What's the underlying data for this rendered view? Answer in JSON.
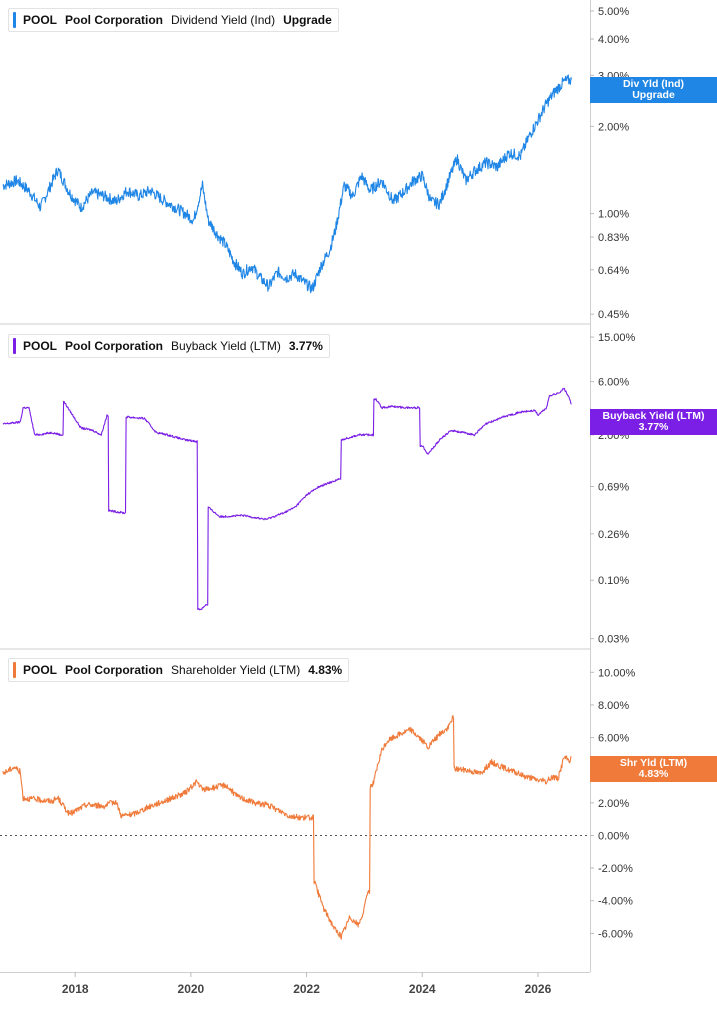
{
  "x_axis": {
    "ticks": [
      "2018",
      "2020",
      "2022",
      "2024",
      "2026"
    ],
    "tick_years": [
      2018,
      2020,
      2022,
      2024,
      2026
    ]
  },
  "colors": {
    "dividend": "#1f86e6",
    "buyback": "#7b1fe6",
    "shareholder": "#f07a3a",
    "grid": "#e6e6e6",
    "axis_text": "#333333"
  },
  "panels": [
    {
      "key": "dividend",
      "symbol": "POOL",
      "company": "Pool Corporation",
      "metric": "Dividend Yield (Ind)",
      "value": "Upgrade",
      "badge_lines": [
        "Div Yld (Ind)",
        "Upgrade"
      ]
    },
    {
      "key": "buyback",
      "symbol": "POOL",
      "company": "Pool Corporation",
      "metric": "Buyback Yield (LTM)",
      "value": "3.77%",
      "badge_lines": [
        "Buyback Yield (LTM)",
        "3.77%"
      ]
    },
    {
      "key": "shareholder",
      "symbol": "POOL",
      "company": "Pool Corporation",
      "metric": "Shareholder Yield (LTM)",
      "value": "4.83%",
      "badge_lines": [
        "Shr Yld (LTM)",
        "4.83%"
      ]
    }
  ],
  "chart_data": [
    {
      "type": "line",
      "title": "POOL Pool Corporation Dividend Yield (Ind)",
      "y_scale": "log",
      "ylim": [
        0.44,
        5.2
      ],
      "y_ticks": [
        5.0,
        4.0,
        3.0,
        2.0,
        1.0,
        0.83,
        0.64,
        0.45
      ],
      "y_tick_labels": [
        "5.00%",
        "4.00%",
        "3.00%",
        "2.00%",
        "1.00%",
        "0.83%",
        "0.64%",
        "0.45%"
      ],
      "xlim": [
        2016.7,
        2026.9
      ],
      "series": [
        {
          "color": "#1f86e6",
          "x": [
            2016.75,
            2017.0,
            2017.2,
            2017.4,
            2017.55,
            2017.7,
            2017.9,
            2018.1,
            2018.3,
            2018.5,
            2018.7,
            2018.9,
            2019.1,
            2019.3,
            2019.5,
            2019.7,
            2019.9,
            2020.05,
            2020.2,
            2020.3,
            2020.45,
            2020.6,
            2020.75,
            2020.9,
            2021.05,
            2021.2,
            2021.35,
            2021.5,
            2021.65,
            2021.8,
            2021.95,
            2022.1,
            2022.25,
            2022.4,
            2022.5,
            2022.65,
            2022.8,
            2022.95,
            2023.1,
            2023.3,
            2023.5,
            2023.7,
            2023.85,
            2024.0,
            2024.15,
            2024.3,
            2024.45,
            2024.6,
            2024.75,
            2024.9,
            2025.1,
            2025.3,
            2025.5,
            2025.7,
            2025.85,
            2026.0,
            2026.15,
            2026.3,
            2026.45,
            2026.58
          ],
          "y": [
            1.25,
            1.3,
            1.2,
            1.05,
            1.22,
            1.42,
            1.18,
            1.05,
            1.18,
            1.15,
            1.1,
            1.2,
            1.15,
            1.2,
            1.12,
            1.06,
            1.0,
            0.95,
            1.25,
            0.95,
            0.85,
            0.78,
            0.68,
            0.62,
            0.66,
            0.6,
            0.56,
            0.63,
            0.6,
            0.62,
            0.58,
            0.55,
            0.66,
            0.75,
            0.88,
            1.25,
            1.15,
            1.35,
            1.2,
            1.3,
            1.1,
            1.2,
            1.3,
            1.35,
            1.1,
            1.08,
            1.3,
            1.55,
            1.3,
            1.4,
            1.5,
            1.45,
            1.62,
            1.58,
            1.85,
            2.1,
            2.4,
            2.65,
            2.85,
            2.9
          ]
        }
      ]
    },
    {
      "type": "line",
      "title": "POOL Pool Corporation Buyback Yield (LTM)",
      "y_scale": "log",
      "ylim": [
        0.028,
        17.0
      ],
      "y_ticks": [
        15.0,
        6.0,
        2.0,
        0.69,
        0.26,
        0.1,
        0.03
      ],
      "y_tick_labels": [
        "15.00%",
        "6.00%",
        "2.00%",
        "0.69%",
        "0.26%",
        "0.10%",
        "0.03%"
      ],
      "xlim": [
        2016.7,
        2026.9
      ],
      "series": [
        {
          "color": "#7b1fe6",
          "x": [
            2016.75,
            2017.05,
            2017.1,
            2017.2,
            2017.3,
            2017.35,
            2017.6,
            2017.75,
            2017.8,
            2018.1,
            2018.3,
            2018.45,
            2018.55,
            2018.58,
            2018.85,
            2018.88,
            2019.2,
            2019.4,
            2019.6,
            2019.9,
            2020.1,
            2020.12,
            2020.18,
            2020.25,
            2020.3,
            2020.5,
            2020.9,
            2021.3,
            2021.6,
            2021.8,
            2022.0,
            2022.2,
            2022.55,
            2022.6,
            2022.9,
            2023.2,
            2023.3,
            2023.5,
            2023.7,
            2024.0,
            2024.1,
            2024.3,
            2024.5,
            2024.9,
            2025.1,
            2025.4,
            2025.7,
            2025.95,
            2026.0,
            2026.15,
            2026.2,
            2026.35,
            2026.45,
            2026.52,
            2026.58
          ],
          "y": [
            2.5,
            2.6,
            3.5,
            3.5,
            2.0,
            2.0,
            2.1,
            2.0,
            4.0,
            2.3,
            2.2,
            2.0,
            3.0,
            0.42,
            0.4,
            2.9,
            2.8,
            2.1,
            2.0,
            1.8,
            1.75,
            0.055,
            0.055,
            0.06,
            0.45,
            0.37,
            0.38,
            0.35,
            0.4,
            0.45,
            0.58,
            0.68,
            0.8,
            1.8,
            2.0,
            4.2,
            3.5,
            3.6,
            3.5,
            1.6,
            1.35,
            1.8,
            2.2,
            2.0,
            2.5,
            2.9,
            3.2,
            3.3,
            3.0,
            3.5,
            4.5,
            4.7,
            5.2,
            4.5,
            3.77
          ]
        }
      ]
    },
    {
      "type": "line",
      "title": "POOL Pool Corporation Shareholder Yield (LTM)",
      "y_scale": "linear",
      "ylim": [
        -8.0,
        11.0
      ],
      "y_ticks": [
        10,
        8,
        6,
        4,
        2,
        0,
        -2,
        -4,
        -6
      ],
      "y_tick_labels": [
        "10.00%",
        "8.00%",
        "6.00%",
        "4.00%",
        "2.00%",
        "0.00%",
        "-2.00%",
        "-4.00%",
        "-6.00%"
      ],
      "zero_line": true,
      "xlim": [
        2016.7,
        2026.9
      ],
      "series": [
        {
          "color": "#f07a3a",
          "x": [
            2016.75,
            2016.95,
            2017.05,
            2017.1,
            2017.35,
            2017.6,
            2017.7,
            2017.9,
            2018.2,
            2018.5,
            2018.7,
            2018.8,
            2019.0,
            2019.3,
            2019.6,
            2019.9,
            2020.1,
            2020.2,
            2020.35,
            2020.6,
            2020.8,
            2021.1,
            2021.3,
            2021.6,
            2021.7,
            2021.9,
            2022.1,
            2022.13,
            2022.3,
            2022.5,
            2022.6,
            2022.75,
            2022.9,
            2023.0,
            2023.05,
            2023.1,
            2023.15,
            2023.3,
            2023.4,
            2023.6,
            2023.8,
            2023.95,
            2024.1,
            2024.3,
            2024.45,
            2024.52,
            2024.55,
            2024.8,
            2025.0,
            2025.2,
            2025.5,
            2025.8,
            2026.0,
            2026.15,
            2026.25,
            2026.35,
            2026.45,
            2026.55,
            2026.58
          ],
          "y": [
            3.8,
            4.2,
            3.9,
            2.3,
            2.2,
            2.1,
            2.3,
            1.3,
            1.9,
            1.8,
            2.1,
            1.2,
            1.3,
            1.8,
            2.2,
            2.6,
            3.3,
            2.8,
            2.9,
            3.1,
            2.4,
            2.0,
            1.9,
            1.4,
            1.2,
            1.1,
            1.1,
            -2.8,
            -4.5,
            -5.8,
            -6.2,
            -5.0,
            -5.5,
            -4.5,
            -3.5,
            3.0,
            3.2,
            5.2,
            5.8,
            6.2,
            6.5,
            6.0,
            5.4,
            6.2,
            6.6,
            7.2,
            4.1,
            4.0,
            3.8,
            4.5,
            4.0,
            3.6,
            3.4,
            3.3,
            3.6,
            3.5,
            4.8,
            4.6,
            4.83
          ]
        }
      ]
    }
  ]
}
